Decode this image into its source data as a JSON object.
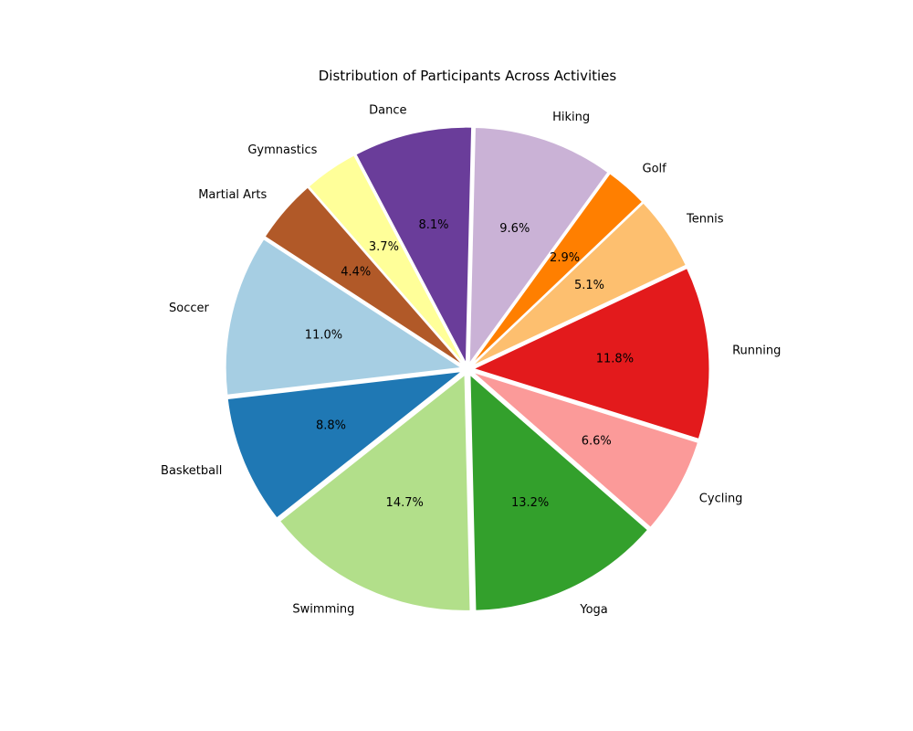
{
  "chart_data": {
    "type": "pie",
    "title": "Distribution of Participants Across Activities",
    "start_angle_deg": 147,
    "direction": "counterclockwise",
    "slices": [
      {
        "label": "Soccer",
        "value": 11.0,
        "pct_label": "11.0%",
        "color": "#a6cee3"
      },
      {
        "label": "Basketball",
        "value": 8.8,
        "pct_label": "8.8%",
        "color": "#1f78b4"
      },
      {
        "label": "Swimming",
        "value": 14.7,
        "pct_label": "14.7%",
        "color": "#b2df8a"
      },
      {
        "label": "Yoga",
        "value": 13.2,
        "pct_label": "13.2%",
        "color": "#33a02c"
      },
      {
        "label": "Cycling",
        "value": 6.6,
        "pct_label": "6.6%",
        "color": "#fb9a99"
      },
      {
        "label": "Running",
        "value": 11.8,
        "pct_label": "11.8%",
        "color": "#e31a1c"
      },
      {
        "label": "Tennis",
        "value": 5.1,
        "pct_label": "5.1%",
        "color": "#fdbf6f"
      },
      {
        "label": "Golf",
        "value": 2.9,
        "pct_label": "2.9%",
        "color": "#ff7f00"
      },
      {
        "label": "Hiking",
        "value": 9.6,
        "pct_label": "9.6%",
        "color": "#cab2d6"
      },
      {
        "label": "Dance",
        "value": 8.1,
        "pct_label": "8.1%",
        "color": "#6a3d9a"
      },
      {
        "label": "Gymnastics",
        "value": 3.7,
        "pct_label": "3.7%",
        "color": "#ffff99"
      },
      {
        "label": "Martial Arts",
        "value": 4.4,
        "pct_label": "4.4%",
        "color": "#b15928"
      }
    ]
  }
}
